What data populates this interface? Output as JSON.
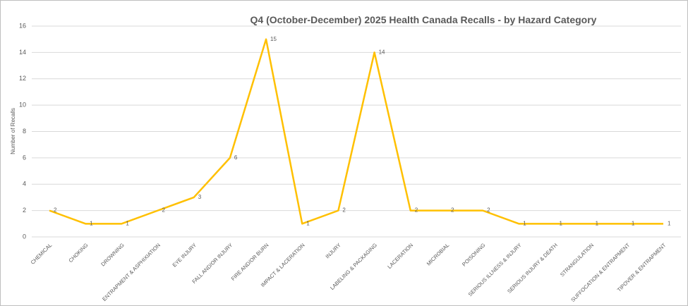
{
  "chart_data": {
    "type": "line",
    "title": "Q4 (October-December) 2025 Health Canada Recalls - by Hazard Category",
    "y_label": "Number of Recalls",
    "categories": [
      "CHEMICAL",
      "CHOKING",
      "DROWNING",
      "ENTRAPMENT & ASPHIXIATION",
      "EYE INJURY",
      "FALL AND/OR INJURY",
      "FIRE AND/OR BURN",
      "IMPACT & LACERATION",
      "INJURY",
      "LABELING & PACKAGING",
      "LACERATION",
      "MICROBIAL",
      "POISONING",
      "SERIOUS ILLNESS & INJURY",
      "SERIOUS INJURY & DEATH",
      "STRANGULATION",
      "SUFFOCATION & ENTRAPMENT",
      "TIPOVER & ENTRAPMENT"
    ],
    "values": [
      2,
      1,
      1,
      2,
      3,
      6,
      15,
      1,
      2,
      14,
      2,
      2,
      2,
      1,
      1,
      1,
      1,
      1
    ],
    "color": "#ffc000",
    "ylim": [
      0,
      16
    ],
    "yticks": [
      0,
      2,
      4,
      6,
      8,
      10,
      12,
      14,
      16
    ],
    "grid": true
  }
}
